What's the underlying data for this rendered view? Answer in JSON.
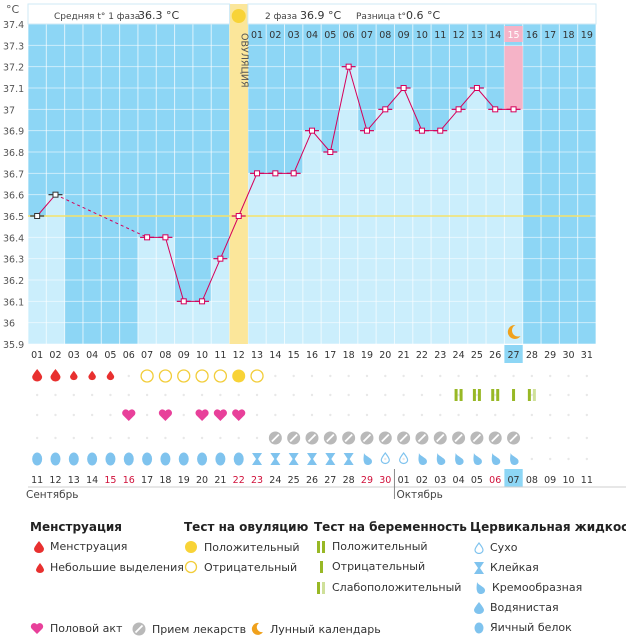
{
  "header": {
    "unit": "°C",
    "phase1_label": "Средняя t° 1 фаза",
    "phase1_value": "36.3 °C",
    "phase2_label": "2 фаза",
    "phase2_value": "36.9 °C",
    "diff_label": "Разница t°",
    "diff_value": "0.6 °C",
    "ovulation_label": "ОВУЛЯЦИЯ"
  },
  "chart_data": {
    "type": "line",
    "ylim": [
      35.9,
      37.4
    ],
    "yticks": [
      "37.4",
      "37.3",
      "37.2",
      "37.1",
      "37",
      "36.9",
      "36.8",
      "36.7",
      "36.6",
      "36.5",
      "36.4",
      "36.3",
      "36.2",
      "36.1",
      "36",
      "35.9"
    ],
    "cycle_days": [
      "01",
      "02",
      "03",
      "04",
      "05",
      "06",
      "07",
      "08",
      "09",
      "10",
      "11",
      "12",
      "13",
      "14",
      "15",
      "16",
      "17",
      "18",
      "19",
      "20",
      "21",
      "22",
      "23",
      "24",
      "25",
      "26",
      "27",
      "28",
      "29",
      "30",
      "31"
    ],
    "postovulation_days": [
      "01",
      "02",
      "03",
      "04",
      "05",
      "06",
      "07",
      "08",
      "09",
      "10",
      "11",
      "12",
      "13",
      "14",
      "15",
      "16",
      "17",
      "18",
      "19"
    ],
    "temperatures": [
      36.5,
      36.6,
      null,
      null,
      null,
      null,
      36.4,
      36.4,
      36.1,
      36.1,
      36.3,
      36.5,
      36.7,
      36.7,
      36.7,
      36.9,
      36.8,
      37.2,
      36.9,
      37.0,
      37.1,
      36.9,
      36.9,
      37.0,
      37.1,
      37.0,
      37.0,
      null,
      null,
      null,
      null
    ],
    "coverline": 36.5,
    "ovulation_day_index": 11,
    "current_day_index": 26,
    "dates": [
      "11",
      "12",
      "13",
      "14",
      "15",
      "16",
      "17",
      "18",
      "19",
      "20",
      "21",
      "22",
      "23",
      "24",
      "25",
      "26",
      "27",
      "28",
      "29",
      "30",
      "01",
      "02",
      "03",
      "04",
      "05",
      "06",
      "07",
      "08",
      "09",
      "10",
      "11"
    ],
    "weekend_indices": [
      4,
      5,
      11,
      12,
      18,
      19,
      25
    ],
    "month_start": "Сентябрь",
    "month_next": "Октябрь",
    "month_next_index": 20,
    "menstruation": [
      "big",
      "big",
      "small",
      "small",
      "small",
      null,
      null,
      null,
      null,
      null,
      null,
      null,
      null,
      null,
      null,
      null,
      null,
      null,
      null,
      null,
      null,
      null,
      null,
      null,
      null,
      null,
      null,
      null,
      null,
      null,
      null
    ],
    "ovulation_test": [
      null,
      null,
      null,
      null,
      null,
      null,
      "neg",
      "neg",
      "neg",
      "neg",
      "neg",
      "pos",
      "neg",
      null,
      null,
      null,
      null,
      null,
      null,
      null,
      null,
      null,
      null,
      null,
      null,
      null,
      null,
      null,
      null,
      null,
      null
    ],
    "pregnancy_test": [
      null,
      null,
      null,
      null,
      null,
      null,
      null,
      null,
      null,
      null,
      null,
      null,
      null,
      null,
      null,
      null,
      null,
      null,
      null,
      null,
      null,
      null,
      null,
      "pos",
      "pos",
      "pos",
      "neg",
      "faint",
      null,
      null,
      null
    ],
    "intercourse": [
      false,
      false,
      false,
      false,
      false,
      true,
      false,
      true,
      false,
      true,
      true,
      true,
      false,
      false,
      false,
      false,
      false,
      false,
      false,
      false,
      false,
      false,
      false,
      false,
      false,
      false,
      false,
      false,
      false,
      false,
      false
    ],
    "medication": [
      false,
      false,
      false,
      false,
      false,
      false,
      false,
      false,
      false,
      false,
      false,
      false,
      false,
      true,
      true,
      true,
      true,
      true,
      true,
      true,
      true,
      true,
      true,
      true,
      true,
      true,
      true,
      false,
      false,
      false,
      false
    ],
    "mucus": [
      "egg",
      "egg",
      "egg",
      "egg",
      "egg",
      "egg",
      "egg",
      "egg",
      "egg",
      "egg",
      "egg",
      "egg",
      "sticky",
      "sticky",
      "sticky",
      "sticky",
      "sticky",
      "sticky",
      "creamy",
      "dry",
      "dry",
      "creamy",
      "creamy",
      "creamy",
      "creamy",
      "creamy",
      "creamy",
      null,
      null,
      null,
      null
    ]
  },
  "legend": {
    "menstruation_title": "Менструация",
    "menstruation_items": [
      "Менструация",
      "Небольшие выделения"
    ],
    "ovulation_title": "Тест на овуляцию",
    "ovulation_items": [
      "Положительный",
      "Отрицательный"
    ],
    "pregnancy_title": "Тест на беременность",
    "pregnancy_items": [
      "Положительный",
      "Отрицательный",
      "Слабоположительный"
    ],
    "mucus_title": "Цервикальная жидкость",
    "mucus_items": [
      "Сухо",
      "Клейкая",
      "Кремообразная",
      "Водянистая",
      "Яичный белок"
    ],
    "bottom_items": [
      "Половой акт",
      "Прием лекарств",
      "Лунный календарь"
    ]
  },
  "colors": {
    "sky": "#8dd6f5",
    "bar": "#cbeefc",
    "line": "#d6005a",
    "ovulation": "#fbe69a",
    "today": "#f5b3c7",
    "coverline": "#f6e26a",
    "blood": "#e8302f",
    "heart": "#e8409a",
    "drop": "#7fc3ee",
    "test": "#98b825",
    "pill": "#b9b9b9",
    "moon": "#f0a11c"
  }
}
